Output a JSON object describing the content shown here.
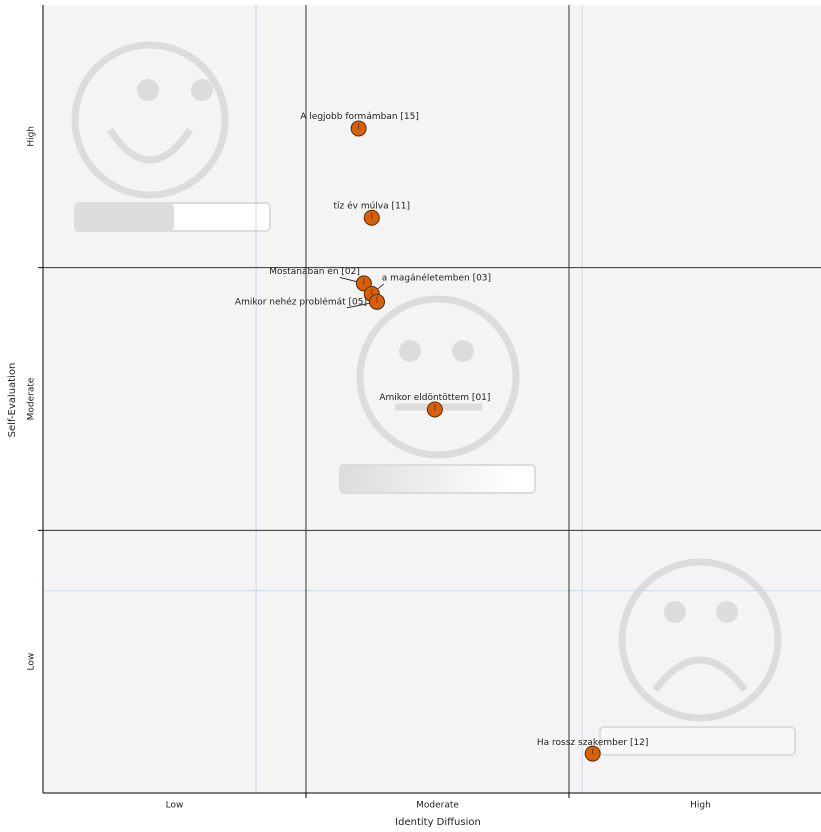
{
  "chart_data": {
    "type": "scatter",
    "x_label": "Identity Diffusion",
    "y_label": "Self-Evaluation",
    "x_categories": [
      "Low",
      "Moderate",
      "High"
    ],
    "y_categories": [
      "Low",
      "Moderate",
      "High"
    ],
    "xlim": [
      0,
      3
    ],
    "ylim": [
      0,
      3
    ],
    "xticks": [
      1,
      2
    ],
    "yticks": [
      1,
      2
    ],
    "reference_lines": {
      "x": [
        0.81,
        2.05
      ],
      "y": [
        0.77
      ]
    },
    "color": "#d9600a",
    "labels": [
      "A legjobb formámban [15]",
      "tíz év múlva [11]",
      "Mostanában én [02]",
      "a magánéletemben  [03]",
      "Amikor nehéz problémát [05]",
      "Amikor eldöntöttem [01]",
      "Ha rossz szakember [12]"
    ],
    "x": [
      1.2,
      1.25,
      1.22,
      1.25,
      1.27,
      1.49,
      2.09
    ],
    "values": [
      2.53,
      2.19,
      1.94,
      1.9,
      1.87,
      1.46,
      0.15
    ]
  }
}
